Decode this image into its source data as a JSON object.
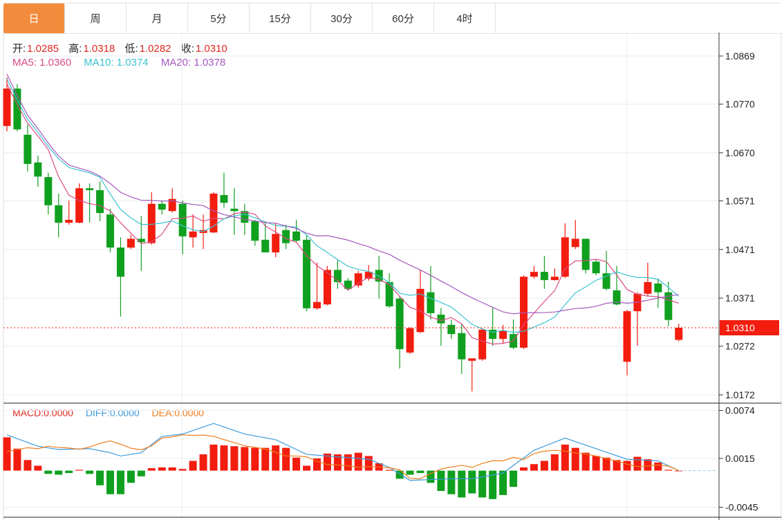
{
  "tabs": [
    {
      "label": "日",
      "active": true
    },
    {
      "label": "周"
    },
    {
      "label": "月"
    },
    {
      "label": "5分"
    },
    {
      "label": "15分"
    },
    {
      "label": "30分"
    },
    {
      "label": "60分"
    },
    {
      "label": "4时"
    }
  ],
  "ohlc_info": {
    "open_label": "开:",
    "open": "1.0285",
    "high_label": "高:",
    "high": "1.0318",
    "low_label": "低:",
    "low": "1.0282",
    "close_label": "收:",
    "close": "1.0310"
  },
  "ma_info": {
    "ma5": "MA5: 1.0360",
    "ma10": "MA10: 1.0374",
    "ma20": "MA20: 1.0378"
  },
  "macd_info": {
    "macd": "MACD:0.0000",
    "diff": "DIFF:0.0000",
    "dea": "DEA:0.0000"
  },
  "colors": {
    "up": "#F21D0F",
    "down": "#10A01F",
    "ma5": "#DA4C87",
    "ma10": "#3BC2CF",
    "ma20": "#A459BF",
    "diff": "#3A9BDC",
    "dea": "#F07C18",
    "accent": "#F28C3C"
  },
  "chart_data": {
    "type": "candlestick",
    "price_ticks": [
      "1.0869",
      "1.0770",
      "1.0670",
      "1.0571",
      "1.0471",
      "1.0371",
      "1.0272",
      "1.0172"
    ],
    "last_price": "1.0310",
    "macd_ticks": [
      "0.0074",
      "0.0015",
      "-0.0045"
    ],
    "ohlc": [
      [
        1.0725,
        1.0825,
        1.0714,
        1.0802
      ],
      [
        1.0802,
        1.0811,
        1.0714,
        1.0718
      ],
      [
        1.0707,
        1.0728,
        1.0631,
        1.0647
      ],
      [
        1.065,
        1.0664,
        1.06,
        1.0621
      ],
      [
        1.062,
        1.0629,
        1.0543,
        1.0562
      ],
      [
        1.0562,
        1.0586,
        1.0496,
        1.0526
      ],
      [
        1.0526,
        1.0572,
        1.0522,
        1.0532
      ],
      [
        1.0526,
        1.0607,
        1.0525,
        1.0597
      ],
      [
        1.0597,
        1.0607,
        1.0526,
        1.0593
      ],
      [
        1.0593,
        1.0611,
        1.0529,
        1.0546
      ],
      [
        1.0543,
        1.0555,
        1.0465,
        1.0475
      ],
      [
        1.0475,
        1.0496,
        1.0333,
        1.0415
      ],
      [
        1.0475,
        1.0501,
        1.0472,
        1.0493
      ],
      [
        1.0493,
        1.054,
        1.0427,
        1.0486
      ],
      [
        1.0484,
        1.0589,
        1.0481,
        1.0565
      ],
      [
        1.0565,
        1.0572,
        1.0543,
        1.0553
      ],
      [
        1.055,
        1.0597,
        1.0547,
        1.0575
      ],
      [
        1.0565,
        1.0572,
        1.0461,
        1.0498
      ],
      [
        1.0496,
        1.0543,
        1.0475,
        1.0508
      ],
      [
        1.0505,
        1.0543,
        1.0472,
        1.0511
      ],
      [
        1.0506,
        1.0589,
        1.0505,
        1.0586
      ],
      [
        1.0583,
        1.0629,
        1.0557,
        1.0567
      ],
      [
        1.0555,
        1.0597,
        1.0501,
        1.055
      ],
      [
        1.055,
        1.0565,
        1.0501,
        1.0526
      ],
      [
        1.0529,
        1.0532,
        1.0479,
        1.0489
      ],
      [
        1.0491,
        1.0529,
        1.0465,
        1.0465
      ],
      [
        1.0465,
        1.0526,
        1.0455,
        1.0503
      ],
      [
        1.0511,
        1.0522,
        1.0472,
        1.0484
      ],
      [
        1.0508,
        1.0532,
        1.0486,
        1.0489
      ],
      [
        1.0491,
        1.0501,
        1.0344,
        1.035
      ],
      [
        1.035,
        1.0444,
        1.0347,
        1.0363
      ],
      [
        1.0358,
        1.0437,
        1.0356,
        1.0429
      ],
      [
        1.0429,
        1.0451,
        1.039,
        1.0404
      ],
      [
        1.0407,
        1.0412,
        1.0387,
        1.039
      ],
      [
        1.0397,
        1.0427,
        1.0392,
        1.0422
      ],
      [
        1.0411,
        1.0439,
        1.0407,
        1.0425
      ],
      [
        1.0429,
        1.0458,
        1.037,
        1.0405
      ],
      [
        1.0404,
        1.0422,
        1.0351,
        1.0354
      ],
      [
        1.037,
        1.0375,
        1.0226,
        1.0266
      ],
      [
        1.0259,
        1.0311,
        1.0256,
        1.0309
      ],
      [
        1.0301,
        1.0429,
        1.0299,
        1.039
      ],
      [
        1.0383,
        1.0437,
        1.0327,
        1.034
      ],
      [
        1.0337,
        1.0351,
        1.0273,
        1.0319
      ],
      [
        1.0316,
        1.0327,
        1.0287,
        1.0297
      ],
      [
        1.0299,
        1.0316,
        1.0215,
        1.0245
      ],
      [
        1.0242,
        1.0247,
        1.0179,
        1.0247
      ],
      [
        1.0245,
        1.0309,
        1.0242,
        1.0306
      ],
      [
        1.0306,
        1.0351,
        1.0273,
        1.0287
      ],
      [
        1.0287,
        1.0316,
        1.0277,
        1.0304
      ],
      [
        1.0297,
        1.0327,
        1.0266,
        1.0269
      ],
      [
        1.0269,
        1.0418,
        1.0266,
        1.0415
      ],
      [
        1.0415,
        1.0437,
        1.0411,
        1.0425
      ],
      [
        1.0425,
        1.0458,
        1.039,
        1.0408
      ],
      [
        1.0408,
        1.0432,
        1.0407,
        1.0415
      ],
      [
        1.0415,
        1.0525,
        1.0412,
        1.0496
      ],
      [
        1.0476,
        1.0532,
        1.0472,
        1.0493
      ],
      [
        1.0493,
        1.0493,
        1.0422,
        1.0429
      ],
      [
        1.0446,
        1.0451,
        1.0418,
        1.0422
      ],
      [
        1.0422,
        1.0468,
        1.0387,
        1.039
      ],
      [
        1.0387,
        1.0437,
        1.0356,
        1.0358
      ],
      [
        1.024,
        1.0347,
        1.0212,
        1.0344
      ],
      [
        1.0344,
        1.0383,
        1.0273,
        1.038
      ],
      [
        1.038,
        1.0444,
        1.0375,
        1.0404
      ],
      [
        1.0401,
        1.0411,
        1.0351,
        1.0383
      ],
      [
        1.0383,
        1.0405,
        1.0313,
        1.0326
      ],
      [
        1.0285,
        1.0318,
        1.0282,
        1.031
      ]
    ],
    "macd_hist": [
      0.0041,
      0.0027,
      0.0013,
      0.0006,
      -0.0004,
      -0.0005,
      -0.0003,
      0.0001,
      -0.0004,
      -0.0018,
      -0.0029,
      -0.0029,
      -0.0015,
      -0.0007,
      0.0003,
      0.0004,
      0.0004,
      0.0002,
      0.0012,
      0.002,
      0.0032,
      0.0031,
      0.003,
      0.0029,
      0.0028,
      0.0028,
      0.0031,
      0.0028,
      0.0016,
      0.0006,
      0.0015,
      0.0021,
      0.002,
      0.002,
      0.0022,
      0.0018,
      0.0009,
      0.0001,
      -0.001,
      -0.0005,
      -0.0003,
      -0.0015,
      -0.0025,
      -0.0029,
      -0.0033,
      -0.0028,
      -0.0033,
      -0.0035,
      -0.003,
      -0.002,
      0.0004,
      0.0008,
      0.0012,
      0.002,
      0.0032,
      0.0028,
      0.0022,
      0.0018,
      0.0016,
      0.0013,
      0.0012,
      0.0017,
      0.0014,
      0.001,
      0.0001,
      0.0
    ],
    "diff_keypoints": [
      [
        1,
        0.0044
      ],
      [
        4,
        0.003
      ],
      [
        6,
        0.0026
      ],
      [
        9,
        0.0027
      ],
      [
        11,
        0.0022
      ],
      [
        12,
        0.0018
      ],
      [
        14,
        0.0022
      ],
      [
        16,
        0.0042
      ],
      [
        18,
        0.0045
      ],
      [
        21,
        0.0058
      ],
      [
        24,
        0.0045
      ],
      [
        27,
        0.0038
      ],
      [
        30,
        0.002
      ],
      [
        32,
        0.0018
      ],
      [
        36,
        0.0014
      ],
      [
        38,
        0.0004
      ],
      [
        40,
        -0.0012
      ],
      [
        44,
        -0.001
      ],
      [
        46,
        -0.001
      ],
      [
        49,
        -0.0003
      ],
      [
        52,
        0.0025
      ],
      [
        55,
        0.004
      ],
      [
        58,
        0.0027
      ],
      [
        61,
        0.0014
      ],
      [
        64,
        0.0012
      ],
      [
        66,
        0.0
      ]
    ]
  }
}
